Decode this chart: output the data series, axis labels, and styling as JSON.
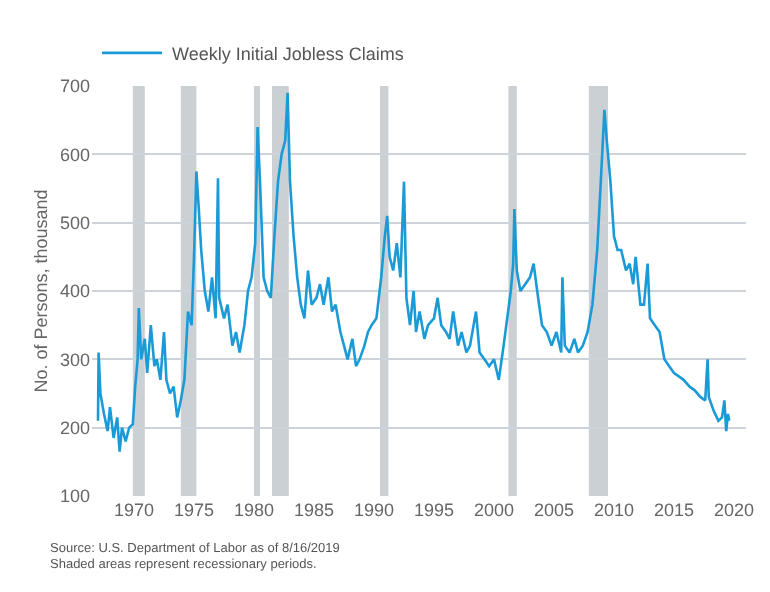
{
  "chart_data": {
    "type": "line",
    "ylabel": "No. of Persons, thousand",
    "x": [
      1967.0,
      1967.05,
      1967.2,
      1967.5,
      1967.8,
      1968.0,
      1968.3,
      1968.6,
      1968.8,
      1969.0,
      1969.3,
      1969.6,
      1969.9,
      1970.1,
      1970.3,
      1970.4,
      1970.6,
      1970.9,
      1971.1,
      1971.4,
      1971.7,
      1971.9,
      1972.2,
      1972.5,
      1972.7,
      1973.0,
      1973.3,
      1973.6,
      1973.9,
      1974.2,
      1974.5,
      1974.8,
      1975.0,
      1975.2,
      1975.4,
      1975.6,
      1975.9,
      1976.2,
      1976.5,
      1976.8,
      1977.0,
      1977.1,
      1977.5,
      1977.8,
      1978.2,
      1978.5,
      1978.8,
      1979.2,
      1979.5,
      1979.8,
      1980.1,
      1980.3,
      1980.5,
      1980.8,
      1981.1,
      1981.4,
      1981.7,
      1982.0,
      1982.3,
      1982.6,
      1982.8,
      1983.0,
      1983.3,
      1983.6,
      1983.9,
      1984.2,
      1984.5,
      1984.8,
      1985.2,
      1985.5,
      1985.8,
      1986.2,
      1986.5,
      1986.8,
      1987.2,
      1987.5,
      1987.8,
      1988.2,
      1988.5,
      1988.8,
      1989.2,
      1989.5,
      1989.8,
      1990.2,
      1990.6,
      1990.9,
      1991.1,
      1991.3,
      1991.6,
      1991.9,
      1992.2,
      1992.5,
      1992.7,
      1993.0,
      1993.3,
      1993.5,
      1993.8,
      1994.2,
      1994.5,
      1995.0,
      1995.3,
      1995.6,
      1996.0,
      1996.3,
      1996.6,
      1997.0,
      1997.3,
      1997.7,
      1998.0,
      1998.5,
      1998.8,
      1999.2,
      1999.6,
      2000.0,
      2000.4,
      2000.8,
      2001.1,
      2001.4,
      2001.6,
      2001.7,
      2001.9,
      2002.2,
      2002.6,
      2003.0,
      2003.3,
      2003.6,
      2004.0,
      2004.4,
      2004.8,
      2005.2,
      2005.6,
      2005.7,
      2005.9,
      2006.3,
      2006.7,
      2007.0,
      2007.4,
      2007.8,
      2008.2,
      2008.6,
      2008.9,
      2009.2,
      2009.4,
      2009.7,
      2010.0,
      2010.3,
      2010.6,
      2011.0,
      2011.3,
      2011.6,
      2011.8,
      2012.2,
      2012.5,
      2012.8,
      2013.0,
      2013.4,
      2013.8,
      2014.2,
      2014.6,
      2015.0,
      2015.4,
      2015.8,
      2016.3,
      2016.7,
      2017.2,
      2017.6,
      2017.8,
      2017.9,
      2018.3,
      2018.7,
      2019.0,
      2019.2,
      2019.35,
      2019.5,
      2019.6
    ],
    "series": [
      {
        "name": "Weekly Initial Jobless Claims",
        "color": "#1a9bd7",
        "values": [
          210,
          310,
          250,
          220,
          195,
          230,
          185,
          215,
          165,
          200,
          180,
          200,
          205,
          260,
          300,
          375,
          300,
          330,
          280,
          350,
          290,
          300,
          270,
          340,
          270,
          250,
          260,
          215,
          240,
          270,
          370,
          350,
          450,
          575,
          520,
          460,
          400,
          370,
          420,
          360,
          565,
          390,
          360,
          380,
          320,
          340,
          310,
          350,
          400,
          420,
          470,
          640,
          560,
          420,
          400,
          390,
          480,
          560,
          600,
          620,
          690,
          560,
          480,
          420,
          380,
          360,
          430,
          380,
          390,
          410,
          380,
          420,
          370,
          380,
          340,
          320,
          300,
          330,
          290,
          300,
          320,
          340,
          350,
          360,
          420,
          480,
          510,
          450,
          430,
          470,
          420,
          560,
          390,
          350,
          400,
          340,
          370,
          330,
          350,
          360,
          390,
          350,
          340,
          330,
          370,
          320,
          340,
          310,
          320,
          370,
          310,
          300,
          290,
          300,
          270,
          320,
          360,
          400,
          440,
          520,
          430,
          400,
          410,
          420,
          440,
          400,
          350,
          340,
          320,
          340,
          310,
          420,
          320,
          310,
          330,
          310,
          320,
          340,
          380,
          460,
          560,
          665,
          620,
          560,
          480,
          460,
          460,
          430,
          440,
          410,
          450,
          380,
          380,
          440,
          360,
          350,
          340,
          300,
          290,
          280,
          275,
          270,
          260,
          255,
          245,
          240,
          300,
          245,
          225,
          210,
          215,
          240,
          195,
          220,
          210
        ]
      }
    ],
    "xlim": [
      1966.5,
      2021
    ],
    "xticks": [
      1970,
      1975,
      1980,
      1985,
      1990,
      1995,
      2000,
      2005,
      2010,
      2015,
      2020
    ],
    "ylim": [
      100,
      700
    ],
    "yticks": [
      100,
      200,
      300,
      400,
      500,
      600,
      700
    ],
    "grid": "y",
    "legend": "top left",
    "marker": "none",
    "line_style": "solid",
    "bands": [
      {
        "axis": "x",
        "from": 1969.9,
        "to": 1970.9,
        "color": "#cbd0d5"
      },
      {
        "axis": "x",
        "from": 1973.9,
        "to": 1975.2,
        "color": "#cbd0d5"
      },
      {
        "axis": "x",
        "from": 1980.0,
        "to": 1980.5,
        "color": "#cbd0d5"
      },
      {
        "axis": "x",
        "from": 1981.5,
        "to": 1982.9,
        "color": "#cbd0d5"
      },
      {
        "axis": "x",
        "from": 1990.5,
        "to": 1991.2,
        "color": "#cbd0d5"
      },
      {
        "axis": "x",
        "from": 2001.2,
        "to": 2001.9,
        "color": "#cbd0d5"
      },
      {
        "axis": "x",
        "from": 2007.9,
        "to": 2009.5,
        "color": "#cbd0d5"
      }
    ],
    "annotations": [
      "Source: U.S. Department of Labor as of 8/16/2019",
      "Shaded areas represent recessionary periods."
    ]
  }
}
